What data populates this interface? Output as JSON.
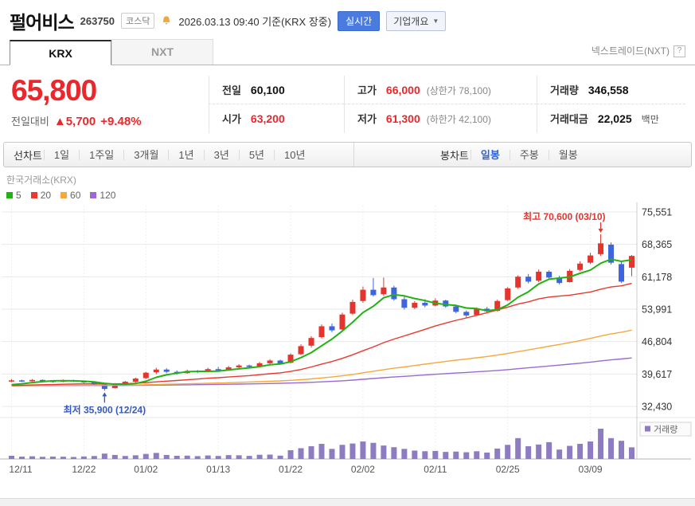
{
  "header": {
    "stock_name": "펄어비스",
    "stock_code": "263750",
    "market_badge": "코스닥",
    "datetime_note": "2026.03.13 09:40 기준(KRX 장중)",
    "realtime_button": "실시간",
    "company_overview_button": "기업개요",
    "caret": "▼"
  },
  "tabs": {
    "krx": "KRX",
    "nxt": "NXT",
    "nxt_link": "넥스트레이드(NXT)",
    "help_icon": "?"
  },
  "quote": {
    "current_price": "65,800",
    "change_label": "전일대비",
    "change_arrow": "▲",
    "change_value": "5,700",
    "change_percent": "+9.48%",
    "fields": {
      "prev_label": "전일",
      "prev_value": "60,100",
      "high_label": "고가",
      "high_value": "66,000",
      "upper_limit": "(상한가 78,100)",
      "volume_label": "거래량",
      "volume_value": "346,558",
      "open_label": "시가",
      "open_value": "63,200",
      "low_label": "저가",
      "low_value": "61,300",
      "lower_limit": "(하한가 42,100)",
      "amount_label": "거래대금",
      "amount_value": "22,025",
      "amount_unit": "백만"
    }
  },
  "toolbar": {
    "line_chart_label": "선차트",
    "periods": [
      "1일",
      "1주일",
      "3개월",
      "1년",
      "3년",
      "5년",
      "10년"
    ],
    "candle_chart_label": "봉차트",
    "candle_types": [
      "일봉",
      "주봉",
      "월봉"
    ],
    "active_candle_type": "일봉"
  },
  "chart_data": {
    "type": "candlestick",
    "exchange_label": "한국거래소(KRX)",
    "ma_legend": [
      {
        "period": 5,
        "color": "#23b214"
      },
      {
        "period": 20,
        "color": "#e8392f"
      },
      {
        "period": 60,
        "color": "#f5a93c"
      },
      {
        "period": 120,
        "color": "#9a6ad1"
      }
    ],
    "up_color": "#e5342e",
    "down_color": "#3e64de",
    "volume_color": "#8d7cc2",
    "volume_legend": "거래량",
    "ylim": [
      32430,
      75551
    ],
    "y_ticks": [
      75551,
      68365,
      61178,
      53991,
      46804,
      39617,
      32430
    ],
    "x_ticks": [
      {
        "index": 0,
        "label": "12/11"
      },
      {
        "index": 7,
        "label": "12/22"
      },
      {
        "index": 13,
        "label": "01/02"
      },
      {
        "index": 20,
        "label": "01/13"
      },
      {
        "index": 27,
        "label": "01/22"
      },
      {
        "index": 34,
        "label": "02/02"
      },
      {
        "index": 41,
        "label": "02/11"
      },
      {
        "index": 48,
        "label": "02/25"
      },
      {
        "index": 56,
        "label": "03/09"
      }
    ],
    "annotations": {
      "high": {
        "label": "최고 70,600 (03/10)",
        "color": "#e5342e"
      },
      "low": {
        "label": "최저 35,900 (12/24)",
        "color": "#3558c4"
      }
    },
    "prehistory_close": 37000,
    "candles": [
      [
        "12/11",
        38000,
        38450,
        37800,
        38200,
        95000
      ],
      [
        "12/12",
        38200,
        38350,
        37850,
        38050,
        70000
      ],
      [
        "12/15",
        38000,
        38500,
        37950,
        38300,
        80000
      ],
      [
        "12/16",
        38300,
        38400,
        37900,
        38100,
        65000
      ],
      [
        "12/17",
        38100,
        38250,
        37700,
        37900,
        72000
      ],
      [
        "12/18",
        37900,
        38400,
        37800,
        38250,
        68000
      ],
      [
        "12/19",
        38250,
        38350,
        37850,
        38000,
        60000
      ],
      [
        "12/22",
        38000,
        38150,
        37600,
        37800,
        75000
      ],
      [
        "12/23",
        37800,
        37900,
        37100,
        37300,
        88000
      ],
      [
        "12/24",
        37300,
        37400,
        35900,
        36300,
        160000
      ],
      [
        "12/26",
        36500,
        37600,
        36400,
        37400,
        120000
      ],
      [
        "12/29",
        37400,
        38100,
        37200,
        37900,
        90000
      ],
      [
        "12/30",
        37900,
        38800,
        37700,
        38600,
        110000
      ],
      [
        "01/02",
        38700,
        40100,
        38500,
        39900,
        150000
      ],
      [
        "01/05",
        40000,
        41000,
        39600,
        40600,
        180000
      ],
      [
        "01/06",
        40600,
        40900,
        39800,
        40100,
        120000
      ],
      [
        "01/07",
        40100,
        40400,
        39500,
        39800,
        95000
      ],
      [
        "01/08",
        39800,
        40600,
        39700,
        40300,
        100000
      ],
      [
        "01/09",
        40300,
        40500,
        39800,
        40100,
        85000
      ],
      [
        "01/12",
        40100,
        41000,
        40000,
        40700,
        105000
      ],
      [
        "01/13",
        40700,
        41200,
        40200,
        40400,
        90000
      ],
      [
        "01/14",
        40400,
        41400,
        40300,
        41100,
        115000
      ],
      [
        "01/15",
        41100,
        41800,
        40900,
        41500,
        110000
      ],
      [
        "01/16",
        41500,
        41700,
        40900,
        41200,
        92000
      ],
      [
        "01/19",
        41200,
        42300,
        41100,
        42000,
        125000
      ],
      [
        "01/20",
        42000,
        42900,
        41800,
        42600,
        130000
      ],
      [
        "01/21",
        42600,
        42800,
        41700,
        41900,
        100000
      ],
      [
        "01/22",
        42100,
        44200,
        42000,
        43900,
        260000
      ],
      [
        "01/23",
        44000,
        46200,
        43800,
        45800,
        320000
      ],
      [
        "01/26",
        45900,
        48000,
        45500,
        47600,
        380000
      ],
      [
        "01/27",
        47800,
        50600,
        47500,
        50200,
        450000
      ],
      [
        "01/28",
        50200,
        50800,
        48900,
        49300,
        300000
      ],
      [
        "01/29",
        49500,
        53200,
        49300,
        52800,
        420000
      ],
      [
        "01/30",
        53000,
        56100,
        52700,
        55600,
        460000
      ],
      [
        "02/02",
        55800,
        59000,
        55400,
        58300,
        520000
      ],
      [
        "02/03",
        58300,
        60900,
        56800,
        57100,
        480000
      ],
      [
        "02/04",
        57300,
        61000,
        56900,
        58800,
        400000
      ],
      [
        "02/05",
        58800,
        59200,
        55900,
        56200,
        350000
      ],
      [
        "02/06",
        56200,
        56800,
        53900,
        54300,
        300000
      ],
      [
        "02/09",
        54300,
        55800,
        54000,
        55400,
        250000
      ],
      [
        "02/10",
        55400,
        56200,
        54400,
        54800,
        230000
      ],
      [
        "02/11",
        54800,
        56400,
        54600,
        55900,
        240000
      ],
      [
        "02/12",
        55900,
        56100,
        54300,
        54600,
        210000
      ],
      [
        "02/13",
        54600,
        54900,
        53100,
        53400,
        220000
      ],
      [
        "02/19",
        53400,
        53700,
        52100,
        52600,
        200000
      ],
      [
        "02/20",
        52700,
        54400,
        52500,
        54100,
        230000
      ],
      [
        "02/23",
        54100,
        54500,
        53200,
        53500,
        190000
      ],
      [
        "02/24",
        53600,
        56100,
        53500,
        55800,
        310000
      ],
      [
        "02/25",
        56000,
        58900,
        55800,
        58600,
        420000
      ],
      [
        "02/26",
        58800,
        61500,
        58500,
        61200,
        620000
      ],
      [
        "02/27",
        61200,
        61800,
        59700,
        60100,
        380000
      ],
      [
        "03/02",
        60300,
        62800,
        60000,
        62300,
        430000
      ],
      [
        "03/03",
        62300,
        62600,
        60600,
        61000,
        500000
      ],
      [
        "03/04",
        61000,
        61400,
        59500,
        59800,
        280000
      ],
      [
        "03/05",
        60000,
        62900,
        59900,
        62500,
        390000
      ],
      [
        "03/06",
        62700,
        64600,
        62400,
        64100,
        450000
      ],
      [
        "03/09",
        64300,
        66500,
        64000,
        65900,
        520000
      ],
      [
        "03/10",
        66200,
        70600,
        65800,
        68600,
        900000
      ],
      [
        "03/11",
        68300,
        68800,
        63900,
        64300,
        620000
      ],
      [
        "03/12",
        64000,
        64500,
        59800,
        60100,
        540000
      ],
      [
        "03/13",
        63200,
        66000,
        61300,
        65800,
        346558
      ]
    ]
  }
}
